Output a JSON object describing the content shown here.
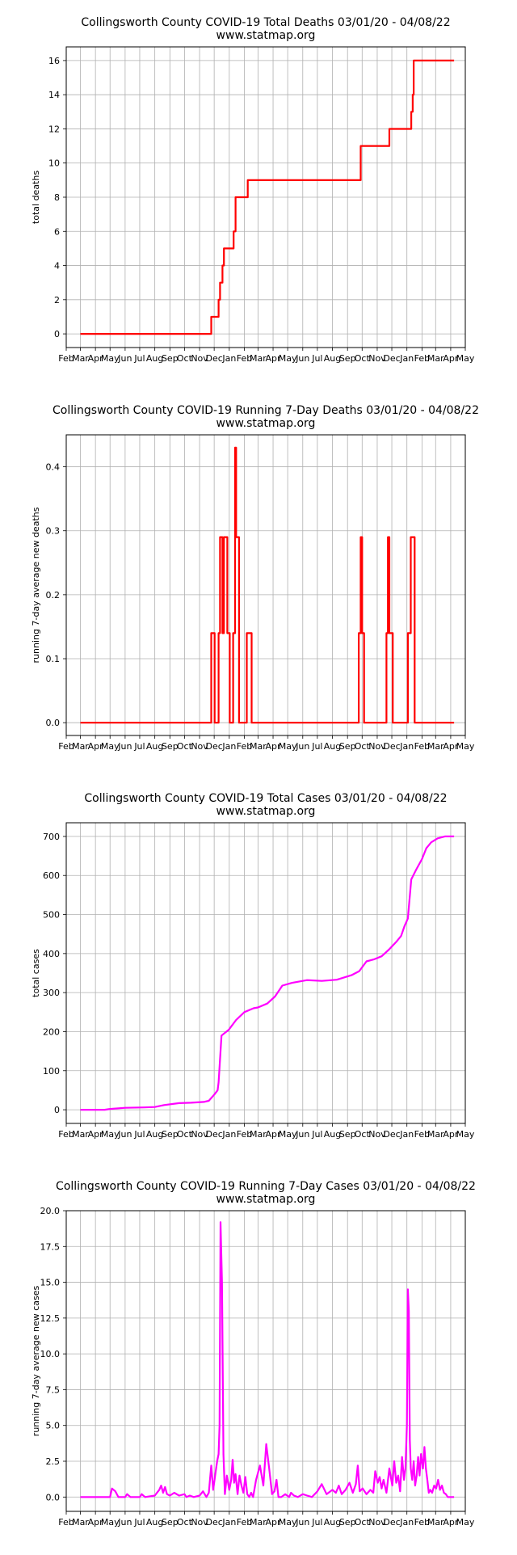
{
  "chart_data": [
    {
      "type": "line",
      "title": "Collingsworth County COVID-19 Total Deaths 03/01/20 - 04/08/22",
      "subtitle": "www.statmap.org",
      "ylabel": "total deaths",
      "xlabel": "",
      "color": "#ff0000",
      "grid": true,
      "xlim": [
        "2020-02-01",
        "2022-05-01"
      ],
      "ylim": [
        -0.8,
        16.8
      ],
      "xticks": [
        "Feb",
        "Mar",
        "Apr",
        "May",
        "Jun",
        "Jul",
        "Aug",
        "Sep",
        "Oct",
        "Nov",
        "Dec",
        "Jan",
        "Feb",
        "Mar",
        "Apr",
        "May",
        "Jun",
        "Jul",
        "Aug",
        "Sep",
        "Oct",
        "Nov",
        "Dec",
        "Jan",
        "Feb",
        "Mar",
        "Apr",
        "May"
      ],
      "yticks": [
        "0",
        "2",
        "4",
        "6",
        "8",
        "10",
        "12",
        "14",
        "16"
      ],
      "series": [
        {
          "step": true,
          "x": [
            "2020-03-01",
            "2020-11-25",
            "2020-12-10",
            "2020-12-13",
            "2020-12-18",
            "2020-12-21",
            "2020-12-24",
            "2021-01-10",
            "2021-01-14",
            "2021-01-16",
            "2021-02-08",
            "2021-09-24",
            "2021-09-28",
            "2021-11-23",
            "2021-11-26",
            "2022-01-10",
            "2022-01-13",
            "2022-01-15",
            "2022-04-08"
          ],
          "y": [
            0,
            1,
            2,
            3,
            4,
            5,
            5,
            6,
            8,
            8,
            9,
            9,
            11,
            11,
            12,
            13,
            14,
            16,
            16
          ]
        }
      ]
    },
    {
      "type": "line",
      "title": "Collingsworth County COVID-19 Running 7-Day Deaths 03/01/20 - 04/08/22",
      "subtitle": "www.statmap.org",
      "ylabel": "running 7-day average new deaths",
      "xlabel": "",
      "color": "#ff0000",
      "grid": true,
      "xlim": [
        "2020-02-01",
        "2022-05-01"
      ],
      "ylim": [
        -0.02,
        0.45
      ],
      "xticks": [
        "Feb",
        "Mar",
        "Apr",
        "May",
        "Jun",
        "Jul",
        "Aug",
        "Sep",
        "Oct",
        "Nov",
        "Dec",
        "Jan",
        "Feb",
        "Mar",
        "Apr",
        "May",
        "Jun",
        "Jul",
        "Aug",
        "Sep",
        "Oct",
        "Nov",
        "Dec",
        "Jan",
        "Feb",
        "Mar",
        "Apr",
        "May"
      ],
      "yticks": [
        "0.0",
        "0.1",
        "0.2",
        "0.3",
        "0.4"
      ],
      "series": [
        {
          "step": true,
          "x": [
            "2020-03-01",
            "2020-11-25",
            "2020-12-02",
            "2020-12-10",
            "2020-12-13",
            "2020-12-18",
            "2020-12-21",
            "2020-12-24",
            "2020-12-28",
            "2021-01-02",
            "2021-01-09",
            "2021-01-13",
            "2021-01-15",
            "2021-01-18",
            "2021-01-21",
            "2021-02-06",
            "2021-02-13",
            "2021-02-16",
            "2021-09-24",
            "2021-09-28",
            "2021-10-01",
            "2021-10-05",
            "2021-11-20",
            "2021-11-23",
            "2021-11-26",
            "2021-12-03",
            "2022-01-03",
            "2022-01-09",
            "2022-01-12",
            "2022-01-17",
            "2022-04-08"
          ],
          "y": [
            0,
            0.14,
            0.0,
            0.14,
            0.29,
            0.14,
            0.29,
            0.29,
            0.14,
            0.0,
            0.14,
            0.43,
            0.29,
            0.29,
            0.0,
            0.14,
            0.14,
            0.0,
            0.14,
            0.29,
            0.14,
            0.0,
            0.14,
            0.29,
            0.14,
            0.0,
            0.14,
            0.29,
            0.29,
            0.0,
            0.0
          ]
        }
      ]
    },
    {
      "type": "line",
      "title": "Collingsworth County COVID-19 Total Cases 03/01/20 - 04/08/22",
      "subtitle": "www.statmap.org",
      "ylabel": "total cases",
      "xlabel": "",
      "color": "#ff00ff",
      "grid": true,
      "xlim": [
        "2020-02-01",
        "2022-05-01"
      ],
      "ylim": [
        -35,
        735
      ],
      "xticks": [
        "Feb",
        "Mar",
        "Apr",
        "May",
        "Jun",
        "Jul",
        "Aug",
        "Sep",
        "Oct",
        "Nov",
        "Dec",
        "Jan",
        "Feb",
        "Mar",
        "Apr",
        "May",
        "Jun",
        "Jul",
        "Aug",
        "Sep",
        "Oct",
        "Nov",
        "Dec",
        "Jan",
        "Feb",
        "Mar",
        "Apr",
        "May"
      ],
      "yticks": [
        "0",
        "100",
        "200",
        "300",
        "400",
        "500",
        "600",
        "700"
      ],
      "series": [
        {
          "step": false,
          "x": [
            "2020-03-01",
            "2020-04-20",
            "2020-05-01",
            "2020-06-01",
            "2020-07-10",
            "2020-08-01",
            "2020-08-20",
            "2020-09-20",
            "2020-10-15",
            "2020-11-10",
            "2020-11-20",
            "2020-12-02",
            "2020-12-08",
            "2020-12-10",
            "2020-12-16",
            "2020-12-31",
            "2021-01-15",
            "2021-02-01",
            "2021-02-20",
            "2021-03-01",
            "2021-03-20",
            "2021-04-05",
            "2021-04-20",
            "2021-05-10",
            "2021-06-10",
            "2021-07-10",
            "2021-08-10",
            "2021-09-10",
            "2021-09-25",
            "2021-10-10",
            "2021-10-25",
            "2021-11-10",
            "2021-11-25",
            "2021-12-10",
            "2021-12-20",
            "2021-12-27",
            "2022-01-03",
            "2022-01-10",
            "2022-01-20",
            "2022-02-01",
            "2022-02-10",
            "2022-02-20",
            "2022-03-05",
            "2022-03-20",
            "2022-04-08"
          ],
          "y": [
            0,
            0,
            2,
            5,
            6,
            7,
            12,
            17,
            18,
            20,
            23,
            40,
            50,
            70,
            190,
            205,
            230,
            250,
            260,
            262,
            272,
            290,
            318,
            325,
            332,
            330,
            333,
            345,
            355,
            380,
            385,
            393,
            410,
            430,
            445,
            470,
            490,
            590,
            615,
            642,
            670,
            685,
            695,
            700,
            700
          ]
        }
      ]
    },
    {
      "type": "line",
      "title": "Collingsworth County COVID-19 Running 7-Day Cases 03/01/20 - 04/08/22",
      "subtitle": "www.statmap.org",
      "ylabel": "running 7-day average new cases",
      "xlabel": "",
      "color": "#ff00ff",
      "grid": true,
      "xlim": [
        "2020-02-01",
        "2022-05-01"
      ],
      "ylim": [
        -1.0,
        20.0
      ],
      "xticks": [
        "Feb",
        "Mar",
        "Apr",
        "May",
        "Jun",
        "Jul",
        "Aug",
        "Sep",
        "Oct",
        "Nov",
        "Dec",
        "Jan",
        "Feb",
        "Mar",
        "Apr",
        "May",
        "Jun",
        "Jul",
        "Aug",
        "Sep",
        "Oct",
        "Nov",
        "Dec",
        "Jan",
        "Feb",
        "Mar",
        "Apr",
        "May"
      ],
      "yticks": [
        "0.0",
        "2.5",
        "5.0",
        "7.5",
        "10.0",
        "12.5",
        "15.0",
        "17.5",
        "20.0"
      ],
      "series": [
        {
          "step": false,
          "x": [
            "2020-03-01",
            "2020-05-01",
            "2020-05-05",
            "2020-05-12",
            "2020-05-18",
            "2020-06-01",
            "2020-06-05",
            "2020-06-12",
            "2020-07-01",
            "2020-07-05",
            "2020-07-12",
            "2020-08-01",
            "2020-08-10",
            "2020-08-14",
            "2020-08-18",
            "2020-08-22",
            "2020-08-26",
            "2020-09-01",
            "2020-09-10",
            "2020-09-20",
            "2020-10-01",
            "2020-10-05",
            "2020-10-12",
            "2020-10-20",
            "2020-11-01",
            "2020-11-08",
            "2020-11-15",
            "2020-11-20",
            "2020-11-25",
            "2020-11-29",
            "2020-12-03",
            "2020-12-07",
            "2020-12-10",
            "2020-12-12",
            "2020-12-14",
            "2020-12-17",
            "2020-12-20",
            "2020-12-23",
            "2020-12-27",
            "2021-01-01",
            "2021-01-05",
            "2021-01-08",
            "2021-01-11",
            "2021-01-14",
            "2021-01-18",
            "2021-01-22",
            "2021-01-26",
            "2021-01-30",
            "2021-02-03",
            "2021-02-07",
            "2021-02-11",
            "2021-02-15",
            "2021-02-19",
            "2021-02-25",
            "2021-03-05",
            "2021-03-12",
            "2021-03-18",
            "2021-03-24",
            "2021-03-30",
            "2021-04-04",
            "2021-04-08",
            "2021-04-12",
            "2021-04-18",
            "2021-04-26",
            "2021-05-04",
            "2021-05-08",
            "2021-05-14",
            "2021-05-22",
            "2021-06-01",
            "2021-06-10",
            "2021-06-20",
            "2021-07-01",
            "2021-07-10",
            "2021-07-20",
            "2021-08-01",
            "2021-08-08",
            "2021-08-14",
            "2021-08-20",
            "2021-08-28",
            "2021-09-05",
            "2021-09-12",
            "2021-09-18",
            "2021-09-22",
            "2021-09-26",
            "2021-10-02",
            "2021-10-10",
            "2021-10-18",
            "2021-10-24",
            "2021-10-28",
            "2021-11-02",
            "2021-11-06",
            "2021-11-10",
            "2021-11-14",
            "2021-11-20",
            "2021-11-26",
            "2021-12-02",
            "2021-12-06",
            "2021-12-10",
            "2021-12-14",
            "2021-12-18",
            "2021-12-22",
            "2021-12-26",
            "2021-12-29",
            "2022-01-01",
            "2022-01-03",
            "2022-01-05",
            "2022-01-07",
            "2022-01-09",
            "2022-01-12",
            "2022-01-15",
            "2022-01-18",
            "2022-01-21",
            "2022-01-24",
            "2022-01-27",
            "2022-01-30",
            "2022-02-03",
            "2022-02-06",
            "2022-02-09",
            "2022-02-12",
            "2022-02-15",
            "2022-02-18",
            "2022-02-22",
            "2022-02-26",
            "2022-03-02",
            "2022-03-06",
            "2022-03-10",
            "2022-03-14",
            "2022-03-18",
            "2022-03-22",
            "2022-03-26",
            "2022-04-01",
            "2022-04-08"
          ],
          "y": [
            0,
            0,
            0.6,
            0.4,
            0,
            0,
            0.2,
            0,
            0,
            0.2,
            0,
            0.1,
            0.5,
            0.8,
            0.3,
            0.7,
            0.2,
            0.1,
            0.3,
            0.1,
            0.2,
            0,
            0.1,
            0,
            0.1,
            0.4,
            0,
            0.3,
            2.2,
            0.5,
            1.5,
            2.5,
            3.0,
            5.0,
            19.2,
            15.0,
            3.0,
            0.2,
            1.5,
            0.5,
            1.2,
            2.6,
            1.0,
            1.6,
            0.2,
            1.5,
            0.8,
            0.3,
            1.4,
            0.2,
            0,
            0.3,
            0,
            1.2,
            2.2,
            0.8,
            3.7,
            2.0,
            0.2,
            0.4,
            1.2,
            0,
            0,
            0.2,
            0,
            0.3,
            0.1,
            0,
            0.2,
            0.1,
            0,
            0.4,
            0.9,
            0.2,
            0.5,
            0.3,
            0.8,
            0.2,
            0.5,
            1.0,
            0.3,
            0.9,
            2.2,
            0.4,
            0.6,
            0.2,
            0.5,
            0.3,
            1.8,
            1.0,
            1.4,
            0.6,
            1.2,
            0.3,
            2.0,
            0.8,
            2.5,
            1.0,
            1.5,
            0.4,
            2.8,
            1.2,
            2.0,
            5.0,
            14.5,
            13.0,
            4.0,
            2.0,
            1.2,
            2.5,
            0.8,
            1.5,
            2.8,
            1.5,
            3.0,
            2.0,
            3.5,
            2.0,
            1.2,
            0.3,
            0.5,
            0.3,
            0.8,
            0.6,
            1.2,
            0.5,
            0.8,
            0.3,
            0.2,
            0,
            0,
            0
          ]
        }
      ]
    }
  ]
}
